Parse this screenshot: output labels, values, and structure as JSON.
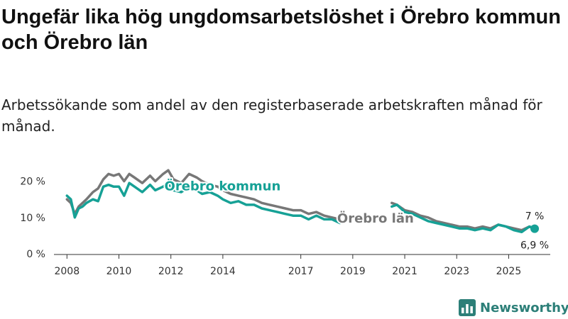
{
  "title": "Ungefär lika hög ungdomsarbetslöshet i Örebro kommun och Örebro län",
  "subtitle": "Arbetssökande som andel av den registerbaserade arbetskraften månad för månad.",
  "brand": "Newsworthy",
  "colors": {
    "kommun": "#16a196",
    "lan": "#777777",
    "axis": "#333333",
    "brand": "#2c7f78"
  },
  "chart_data": {
    "type": "line",
    "title": "Ungefär lika hög ungdomsarbetslöshet i Örebro kommun och Örebro län",
    "xlabel": "",
    "ylabel": "",
    "xlim": [
      2007.5,
      2026.6
    ],
    "ylim": [
      0,
      25
    ],
    "x_ticks": [
      2008,
      2010,
      2012,
      2014,
      2017,
      2019,
      2021,
      2023,
      2025
    ],
    "x_tick_labels": [
      "2008",
      "2010",
      "2012",
      "2014",
      "2017",
      "2019",
      "2021",
      "2023",
      "2025"
    ],
    "y_ticks": [
      0,
      10,
      20
    ],
    "y_tick_labels": [
      "0 %",
      "10 %",
      "20 %"
    ],
    "grid": false,
    "series": [
      {
        "name": "Örebro län",
        "label": "Örebro län",
        "end_label": "7 %",
        "x": [
          2008.0,
          2008.15,
          2008.3,
          2008.45,
          2008.6,
          2008.75,
          2009.0,
          2009.2,
          2009.4,
          2009.6,
          2009.8,
          2010.0,
          2010.2,
          2010.4,
          2010.6,
          2010.9,
          2011.2,
          2011.4,
          2011.7,
          2011.9,
          2012.1,
          2012.4,
          2012.7,
          2013.0,
          2013.2,
          2013.5,
          2013.8,
          2014.0,
          2014.3,
          2014.6,
          2014.9,
          2015.2,
          2015.5,
          2015.8,
          2016.1,
          2016.4,
          2016.7,
          2017.0,
          2017.3,
          2017.6,
          2017.9,
          2018.2,
          2018.5,
          2020.5,
          2020.7,
          2021.0,
          2021.3,
          2021.6,
          2021.9,
          2022.2,
          2022.5,
          2022.8,
          2023.1,
          2023.4,
          2023.7,
          2024.0,
          2024.3,
          2024.6,
          2024.9,
          2025.2,
          2025.5,
          2025.8,
          2026.0
        ],
        "y": [
          15.0,
          14.0,
          11.0,
          13.0,
          14.0,
          15.0,
          17.0,
          18.0,
          20.5,
          22.0,
          21.5,
          22.0,
          20.0,
          22.0,
          21.0,
          19.5,
          21.5,
          20.0,
          22.0,
          23.0,
          20.5,
          19.5,
          22.0,
          21.0,
          20.0,
          19.0,
          18.5,
          17.5,
          16.5,
          16.0,
          15.5,
          15.0,
          14.0,
          13.5,
          13.0,
          12.5,
          12.0,
          12.0,
          11.0,
          11.5,
          10.5,
          10.0,
          9.5,
          14.0,
          13.5,
          12.0,
          11.5,
          10.5,
          10.0,
          9.0,
          8.5,
          8.0,
          7.5,
          7.5,
          7.0,
          7.5,
          7.0,
          8.0,
          7.5,
          7.0,
          6.5,
          7.5,
          7.0
        ]
      },
      {
        "name": "Örebro kommun",
        "label": "Örebro kommun",
        "end_label": "6,9 %",
        "x": [
          2008.0,
          2008.15,
          2008.3,
          2008.45,
          2008.6,
          2008.75,
          2009.0,
          2009.2,
          2009.4,
          2009.6,
          2009.8,
          2010.0,
          2010.2,
          2010.4,
          2010.6,
          2010.9,
          2011.2,
          2011.4,
          2011.7,
          2011.9,
          2012.1,
          2012.4,
          2012.7,
          2013.0,
          2013.2,
          2013.5,
          2013.8,
          2014.0,
          2014.3,
          2014.6,
          2014.9,
          2015.2,
          2015.5,
          2015.8,
          2016.1,
          2016.4,
          2016.7,
          2017.0,
          2017.3,
          2017.6,
          2017.9,
          2018.2,
          2018.5,
          2020.5,
          2020.7,
          2021.0,
          2021.3,
          2021.6,
          2021.9,
          2022.2,
          2022.5,
          2022.8,
          2023.1,
          2023.4,
          2023.7,
          2024.0,
          2024.3,
          2024.6,
          2024.9,
          2025.2,
          2025.5,
          2025.8,
          2026.0
        ],
        "y": [
          16.0,
          15.0,
          10.0,
          12.5,
          13.0,
          14.0,
          15.0,
          14.5,
          18.5,
          19.0,
          18.5,
          18.5,
          16.0,
          19.5,
          18.5,
          17.0,
          19.0,
          17.5,
          18.5,
          19.5,
          17.5,
          17.0,
          18.5,
          17.5,
          16.5,
          17.0,
          16.0,
          15.0,
          14.0,
          14.5,
          13.5,
          13.5,
          12.5,
          12.0,
          11.5,
          11.0,
          10.5,
          10.5,
          9.5,
          10.5,
          9.5,
          9.5,
          8.5,
          13.0,
          13.5,
          11.5,
          11.0,
          10.0,
          9.0,
          8.5,
          8.0,
          7.5,
          7.0,
          7.0,
          6.5,
          7.0,
          6.5,
          8.0,
          7.5,
          6.5,
          6.0,
          7.5,
          6.9
        ]
      }
    ]
  }
}
